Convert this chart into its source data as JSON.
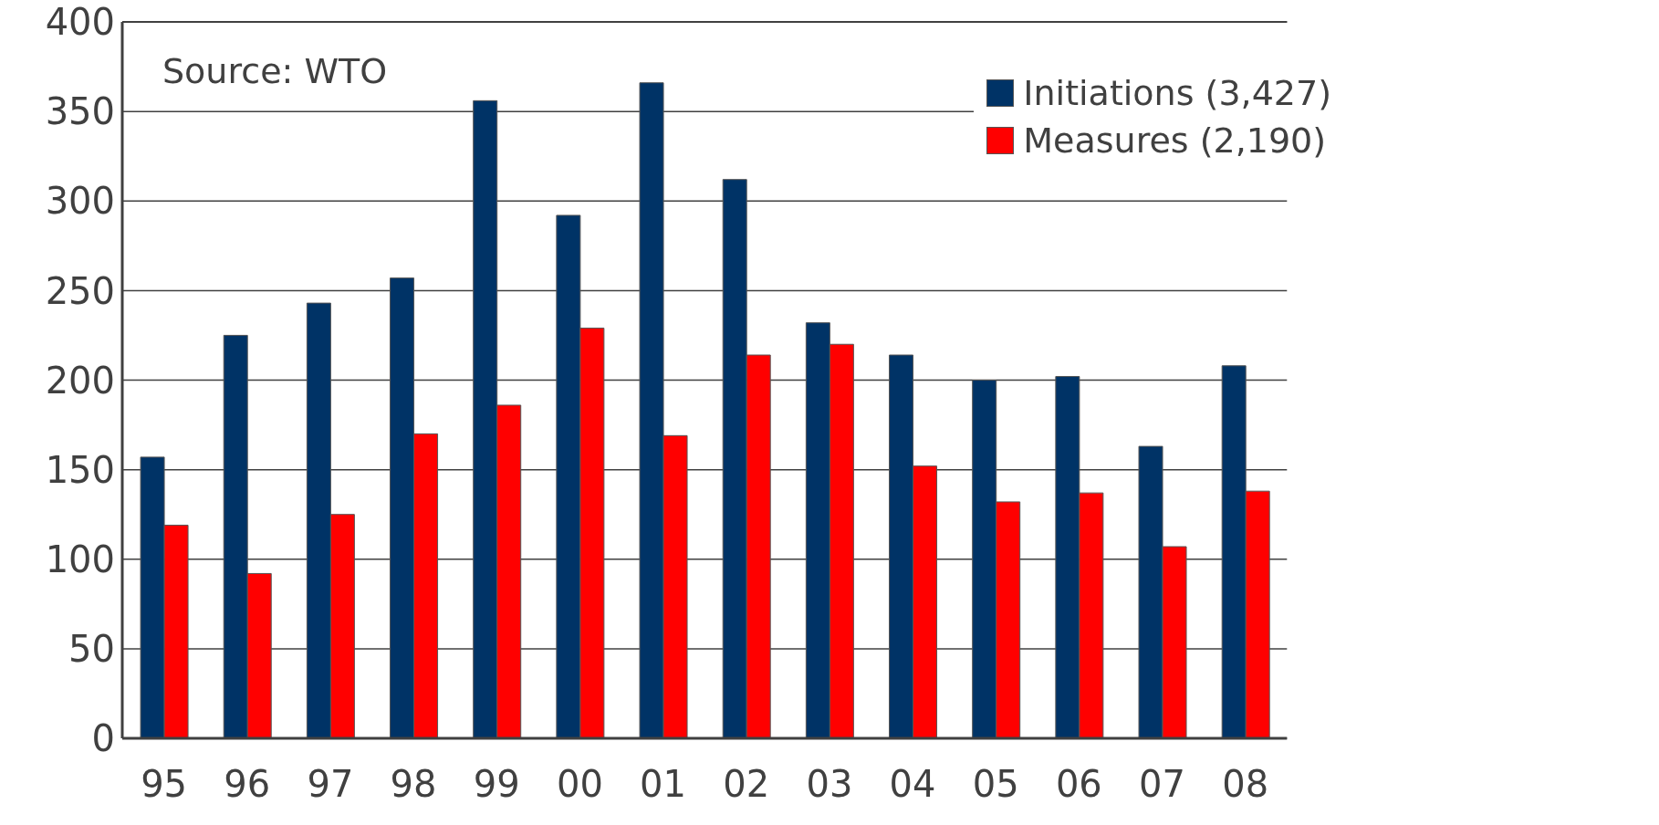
{
  "chart_data": {
    "type": "bar",
    "annotations": [
      "Source: WTO"
    ],
    "categories": [
      "95",
      "96",
      "97",
      "98",
      "99",
      "00",
      "01",
      "02",
      "03",
      "04",
      "05",
      "06",
      "07",
      "08"
    ],
    "series": [
      {
        "name": "Initiations (3,427)",
        "color": "#003366",
        "values": [
          157,
          225,
          243,
          257,
          356,
          292,
          366,
          312,
          232,
          214,
          200,
          202,
          163,
          208
        ]
      },
      {
        "name": "Measures (2,190)",
        "color": "#ff0000",
        "values": [
          119,
          92,
          125,
          170,
          186,
          229,
          169,
          214,
          220,
          152,
          132,
          137,
          107,
          138
        ]
      }
    ],
    "ylim": [
      0,
      400
    ],
    "yticks": [
      0,
      50,
      100,
      150,
      200,
      250,
      300,
      350,
      400
    ],
    "grid": "y",
    "legend": "top right"
  }
}
